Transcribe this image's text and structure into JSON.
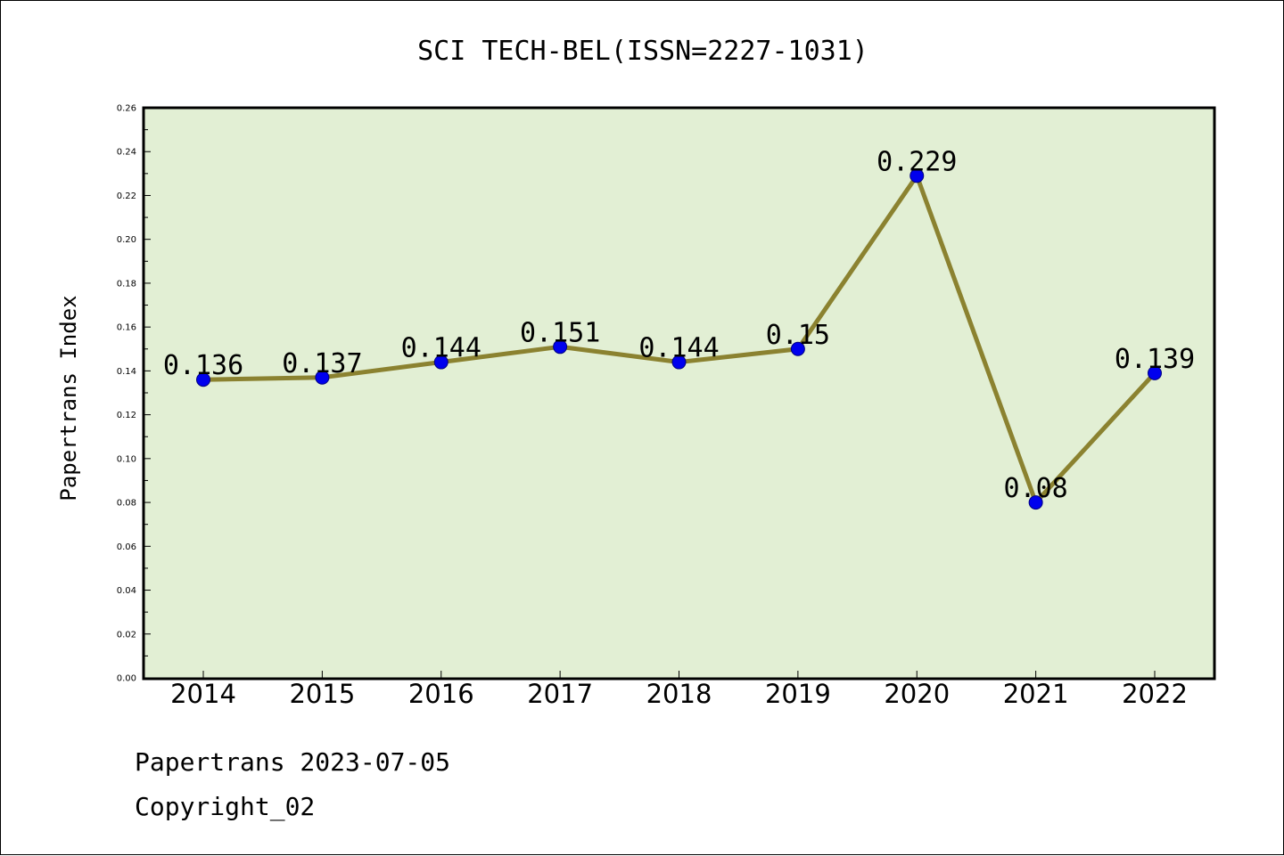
{
  "chart_data": {
    "type": "line",
    "title": "SCI TECH-BEL(ISSN=2227-1031)",
    "ylabel": "Papertrans Index",
    "xlabel": "",
    "categories": [
      "2014",
      "2015",
      "2016",
      "2017",
      "2018",
      "2019",
      "2020",
      "2021",
      "2022"
    ],
    "values": [
      0.136,
      0.137,
      0.144,
      0.151,
      0.144,
      0.15,
      0.229,
      0.08,
      0.139
    ],
    "data_labels": [
      "0.136",
      "0.137",
      "0.144",
      "0.151",
      "0.144",
      "0.15",
      "0.229",
      "0.08",
      "0.139"
    ],
    "ylim": [
      0,
      0.26
    ],
    "yticks": [
      "0.00",
      "0.02",
      "0.04",
      "0.06",
      "0.08",
      "0.10",
      "0.12",
      "0.14",
      "0.16",
      "0.18",
      "0.20",
      "0.22",
      "0.24",
      "0.26"
    ],
    "grid": false,
    "legend": "none",
    "colors": {
      "plot_background": "#e2efd4",
      "line": "#8b8230",
      "marker": "#0000ee",
      "marker_edge": "#000080"
    }
  },
  "footer": {
    "source": "Papertrans 2023-07-05",
    "copyright": "Copyright_02"
  }
}
